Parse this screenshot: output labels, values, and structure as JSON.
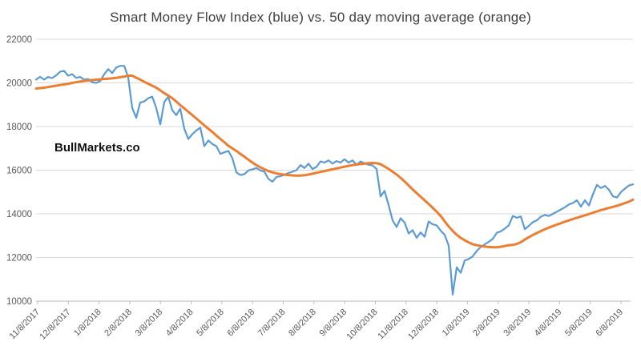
{
  "header": {
    "title": "Smart Money Flow Index (blue) vs. 50 day moving average (orange)"
  },
  "watermark": "BullMarkets.co",
  "colors": {
    "smfi_blue": "#5B9BD5",
    "ma_orange": "#ED7D31",
    "gridline": "#D9D9D9",
    "axis_line": "#D0D0D0",
    "tick_mark": "#BFBFBF",
    "axis_text": "#595959",
    "title_text": "#404040"
  },
  "chart_data": {
    "type": "line",
    "title": "Smart Money Flow Index (blue) vs. 50 day moving average (orange)",
    "xlabel": "",
    "ylabel": "",
    "ylim": [
      10000,
      22000
    ],
    "y_tick_step": 2000,
    "grid": "horizontal",
    "legend_position": "none",
    "y_tick_labels": [
      "22000",
      "20000",
      "18000",
      "16000",
      "14000",
      "12000",
      "10000"
    ],
    "x_tick_labels": [
      "11/8/2017",
      "12/8/2017",
      "1/8/2018",
      "2/8/2018",
      "3/8/2018",
      "4/8/2018",
      "5/8/2018",
      "6/8/2018",
      "7/8/2018",
      "8/8/2018",
      "9/8/2018",
      "10/8/2018",
      "11/8/2018",
      "12/8/2018",
      "1/8/2019",
      "2/8/2019",
      "3/8/2019",
      "4/8/2019",
      "5/8/2019",
      "6/8/2019"
    ],
    "series": [
      {
        "name": "Smart Money Flow Index",
        "color": "#5B9BD5",
        "values": [
          20150,
          20280,
          20150,
          20270,
          20220,
          20340,
          20510,
          20550,
          20330,
          20400,
          20230,
          20270,
          20150,
          20180,
          20030,
          20000,
          20080,
          20390,
          20630,
          20450,
          20700,
          20780,
          20780,
          20250,
          18850,
          18400,
          19100,
          19150,
          19300,
          19370,
          18850,
          18100,
          19120,
          19370,
          18750,
          18520,
          18820,
          17900,
          17430,
          17650,
          17820,
          17950,
          17100,
          17360,
          17200,
          17100,
          16750,
          16820,
          16880,
          16550,
          15900,
          15780,
          15820,
          15990,
          16040,
          16100,
          15990,
          15930,
          15600,
          15470,
          15690,
          15720,
          15790,
          15870,
          15930,
          16000,
          16230,
          16100,
          16300,
          16050,
          16150,
          16400,
          16350,
          16450,
          16300,
          16420,
          16350,
          16500,
          16350,
          16450,
          16250,
          16400,
          16320,
          16250,
          16220,
          16050,
          14800,
          15050,
          14400,
          13700,
          13400,
          13800,
          13600,
          13100,
          13250,
          12900,
          13150,
          12950,
          13650,
          13520,
          13470,
          13230,
          13040,
          12540,
          10300,
          11550,
          11300,
          11860,
          11930,
          12050,
          12300,
          12480,
          12600,
          12720,
          12850,
          13130,
          13200,
          13320,
          13470,
          13900,
          13820,
          13880,
          13300,
          13450,
          13620,
          13700,
          13870,
          13950,
          13900,
          14000,
          14100,
          14200,
          14300,
          14430,
          14500,
          14620,
          14330,
          14620,
          14380,
          14900,
          15330,
          15180,
          15280,
          15100,
          14800,
          14750,
          15000,
          15160,
          15300,
          15350
        ]
      },
      {
        "name": "50 day moving average",
        "color": "#ED7D31",
        "values": [
          19740,
          19760,
          19780,
          19810,
          19840,
          19870,
          19900,
          19930,
          19960,
          20000,
          20030,
          20060,
          20090,
          20110,
          20130,
          20145,
          20160,
          20180,
          20195,
          20210,
          20230,
          20260,
          20290,
          20330,
          20330,
          20240,
          20150,
          20050,
          19960,
          19870,
          19780,
          19660,
          19530,
          19420,
          19300,
          19140,
          18980,
          18830,
          18680,
          18520,
          18370,
          18210,
          18050,
          17900,
          17750,
          17590,
          17430,
          17280,
          17120,
          17000,
          16880,
          16750,
          16620,
          16480,
          16350,
          16230,
          16130,
          16040,
          15960,
          15900,
          15850,
          15820,
          15795,
          15775,
          15760,
          15750,
          15755,
          15770,
          15800,
          15840,
          15880,
          15920,
          15960,
          16000,
          16040,
          16080,
          16120,
          16160,
          16200,
          16230,
          16260,
          16280,
          16300,
          16320,
          16330,
          16320,
          16270,
          16170,
          16060,
          15930,
          15800,
          15650,
          15480,
          15300,
          15120,
          14950,
          14780,
          14620,
          14450,
          14280,
          14100,
          13900,
          13660,
          13420,
          13220,
          13040,
          12900,
          12790,
          12690,
          12610,
          12560,
          12530,
          12500,
          12480,
          12465,
          12470,
          12490,
          12530,
          12560,
          12580,
          12620,
          12700,
          12820,
          12930,
          13030,
          13120,
          13210,
          13290,
          13370,
          13440,
          13510,
          13570,
          13640,
          13700,
          13760,
          13820,
          13880,
          13930,
          13990,
          14050,
          14110,
          14170,
          14220,
          14270,
          14320,
          14370,
          14430,
          14490,
          14560,
          14650
        ]
      }
    ]
  }
}
